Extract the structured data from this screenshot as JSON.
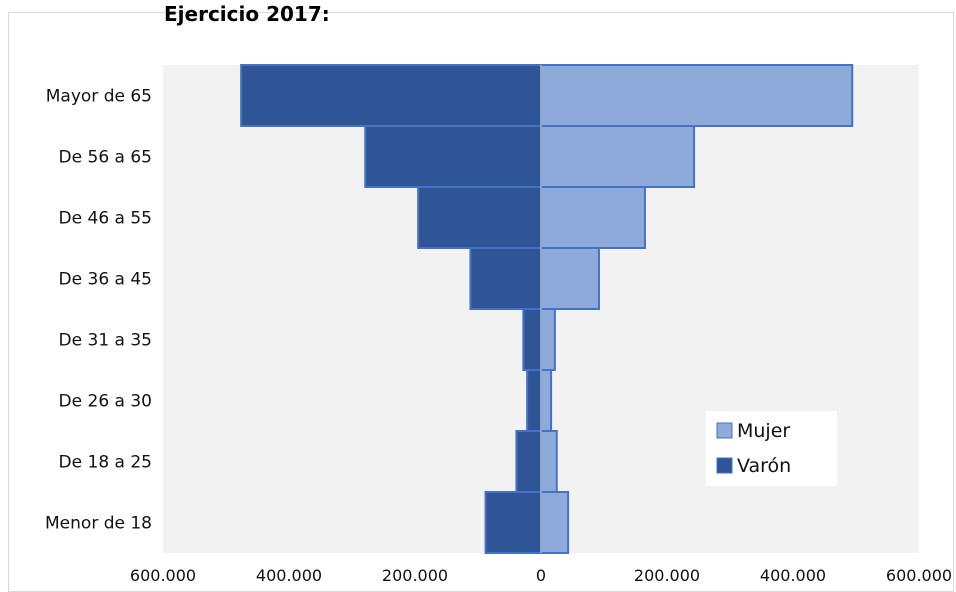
{
  "chart_data": {
    "type": "bar",
    "orientation": "horizontal",
    "title": "Ejercicio 2017:",
    "categories": [
      "Mayor de 65",
      "De 56 a 65",
      "De 46 a 55",
      "De 36 a 45",
      "De 31 a 35",
      "De 26 a 30",
      "De 18 a 25",
      "Menor de 18"
    ],
    "series": [
      {
        "name": "Mujer",
        "color": "#8eaadb",
        "values": [
          494000,
          243000,
          165000,
          92000,
          22000,
          16000,
          25000,
          43000
        ]
      },
      {
        "name": "Varón",
        "color": "#2f5597",
        "values": [
          -476000,
          -279000,
          -195000,
          -112000,
          -28000,
          -22000,
          -39000,
          -88000
        ]
      }
    ],
    "xlim": [
      -600000,
      600000
    ],
    "x_ticks": [
      -600000,
      -400000,
      -200000,
      0,
      200000,
      400000,
      600000
    ],
    "x_tick_labels": [
      "600.000",
      "400.000",
      "200.000",
      "0",
      "200.000",
      "400.000",
      "600.000"
    ],
    "grid": false,
    "legend": {
      "position": "bottom-right-inside",
      "items": [
        "Mujer",
        "Varón"
      ]
    },
    "plot_background": "#f2f2f2",
    "xlabel": "",
    "ylabel": ""
  }
}
